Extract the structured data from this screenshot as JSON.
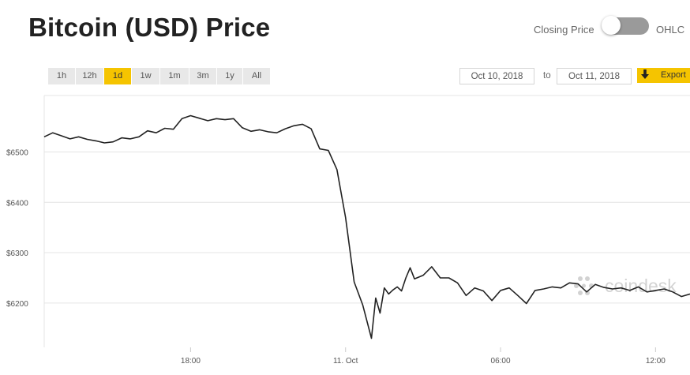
{
  "header": {
    "title": "Bitcoin (USD) Price"
  },
  "toggle": {
    "left_label": "Closing Price",
    "right_label": "OHLC",
    "state": "Closing Price"
  },
  "ranges": [
    {
      "label": "1h",
      "active": false
    },
    {
      "label": "12h",
      "active": false
    },
    {
      "label": "1d",
      "active": true
    },
    {
      "label": "1w",
      "active": false
    },
    {
      "label": "1m",
      "active": false
    },
    {
      "label": "3m",
      "active": false
    },
    {
      "label": "1y",
      "active": false
    },
    {
      "label": "All",
      "active": false
    }
  ],
  "date_range": {
    "from": "Oct 10, 2018",
    "to_label": "to",
    "to": "Oct 11, 2018"
  },
  "export": {
    "label": "Export"
  },
  "watermark": {
    "text": "coindesk"
  },
  "colors": {
    "accent": "#f5c400",
    "line": "#222222",
    "grid": "#e4e4e4"
  },
  "chart_data": {
    "type": "line",
    "title": "Bitcoin (USD) Price",
    "xlabel": "",
    "ylabel": "",
    "y_tick_labels": [
      "$6200",
      "$6300",
      "$6400",
      "$6500"
    ],
    "y_ticks": [
      6200,
      6300,
      6400,
      6500
    ],
    "x_tick_labels": [
      "18:00",
      "11. Oct",
      "06:00",
      "12:00"
    ],
    "x_ticks": [
      "2018-10-10 18:00",
      "2018-10-11 00:00",
      "2018-10-11 06:00",
      "2018-10-11 12:00"
    ],
    "x_range": [
      "2018-10-10 12:20",
      "2018-10-11 13:20"
    ],
    "ylim": [
      6112,
      6612
    ],
    "grid": true,
    "series": [
      {
        "x": [
          "2018-10-10 12:20",
          "2018-10-10 12:40",
          "2018-10-10 13:00",
          "2018-10-10 13:20",
          "2018-10-10 13:40",
          "2018-10-10 14:00",
          "2018-10-10 14:20",
          "2018-10-10 14:40",
          "2018-10-10 15:00",
          "2018-10-10 15:20",
          "2018-10-10 15:40",
          "2018-10-10 16:00",
          "2018-10-10 16:20",
          "2018-10-10 16:40",
          "2018-10-10 17:00",
          "2018-10-10 17:20",
          "2018-10-10 17:40",
          "2018-10-10 18:00",
          "2018-10-10 18:20",
          "2018-10-10 18:40",
          "2018-10-10 19:00",
          "2018-10-10 19:20",
          "2018-10-10 19:40",
          "2018-10-10 20:00",
          "2018-10-10 20:20",
          "2018-10-10 20:40",
          "2018-10-10 21:00",
          "2018-10-10 21:20",
          "2018-10-10 21:40",
          "2018-10-10 22:00",
          "2018-10-10 22:20",
          "2018-10-10 22:40",
          "2018-10-10 23:00",
          "2018-10-10 23:20",
          "2018-10-10 23:40",
          "2018-10-11 00:00",
          "2018-10-11 00:20",
          "2018-10-11 00:40",
          "2018-10-11 01:00",
          "2018-10-11 01:10",
          "2018-10-11 01:20",
          "2018-10-11 01:30",
          "2018-10-11 01:40",
          "2018-10-11 01:50",
          "2018-10-11 02:00",
          "2018-10-11 02:10",
          "2018-10-11 02:20",
          "2018-10-11 02:30",
          "2018-10-11 02:40",
          "2018-10-11 03:00",
          "2018-10-11 03:20",
          "2018-10-11 03:40",
          "2018-10-11 04:00",
          "2018-10-11 04:20",
          "2018-10-11 04:40",
          "2018-10-11 05:00",
          "2018-10-11 05:20",
          "2018-10-11 05:40",
          "2018-10-11 06:00",
          "2018-10-11 06:20",
          "2018-10-11 06:40",
          "2018-10-11 07:00",
          "2018-10-11 07:20",
          "2018-10-11 07:40",
          "2018-10-11 08:00",
          "2018-10-11 08:20",
          "2018-10-11 08:40",
          "2018-10-11 09:00",
          "2018-10-11 09:20",
          "2018-10-11 09:40",
          "2018-10-11 10:00",
          "2018-10-11 10:20",
          "2018-10-11 10:40",
          "2018-10-11 11:00",
          "2018-10-11 11:20",
          "2018-10-11 11:40",
          "2018-10-11 12:00",
          "2018-10-11 12:20",
          "2018-10-11 12:40",
          "2018-10-11 13:00",
          "2018-10-11 13:20"
        ],
        "y": [
          6530,
          6538,
          6532,
          6526,
          6530,
          6525,
          6522,
          6518,
          6520,
          6528,
          6526,
          6530,
          6542,
          6538,
          6547,
          6545,
          6566,
          6572,
          6567,
          6562,
          6566,
          6564,
          6566,
          6548,
          6541,
          6544,
          6540,
          6538,
          6546,
          6552,
          6555,
          6546,
          6506,
          6503,
          6465,
          6370,
          6242,
          6196,
          6130,
          6210,
          6180,
          6230,
          6218,
          6226,
          6232,
          6224,
          6250,
          6270,
          6248,
          6255,
          6272,
          6250,
          6250,
          6240,
          6215,
          6230,
          6224,
          6205,
          6225,
          6230,
          6215,
          6199,
          6225,
          6228,
          6232,
          6230,
          6240,
          6238,
          6222,
          6237,
          6231,
          6228,
          6230,
          6225,
          6232,
          6222,
          6225,
          6228,
          6222,
          6213,
          6218
        ]
      }
    ]
  }
}
